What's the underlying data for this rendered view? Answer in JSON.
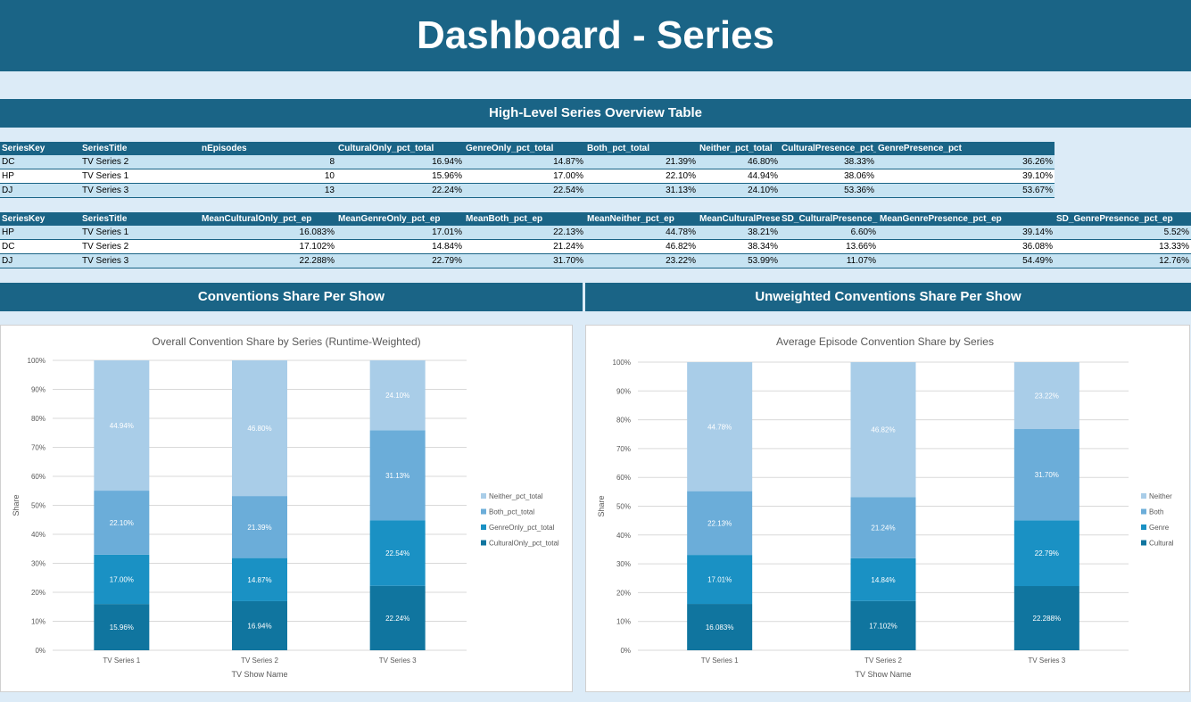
{
  "page_title": "Dashboard - Series",
  "overview_title": "High-Level Series Overview Table",
  "table1": {
    "headers": [
      "SeriesKey",
      "SeriesTitle",
      "nEpisodes",
      "CulturalOnly_pct_total",
      "GenreOnly_pct_total",
      "Both_pct_total",
      "Neither_pct_total",
      "CulturalPresence_pct_",
      "GenrePresence_pct_total",
      ""
    ],
    "rows": [
      [
        "DC",
        "TV Series 2",
        "8",
        "16.94%",
        "14.87%",
        "21.39%",
        "46.80%",
        "38.33%",
        "",
        "36.26%"
      ],
      [
        "HP",
        "TV Series 1",
        "10",
        "15.96%",
        "17.00%",
        "22.10%",
        "44.94%",
        "38.06%",
        "",
        "39.10%"
      ],
      [
        "DJ",
        "TV Series 3",
        "13",
        "22.24%",
        "22.54%",
        "31.13%",
        "24.10%",
        "53.36%",
        "",
        "53.67%"
      ]
    ]
  },
  "table2": {
    "headers": [
      "SeriesKey",
      "SeriesTitle",
      "MeanCulturalOnly_pct_ep",
      "MeanGenreOnly_pct_ep",
      "MeanBoth_pct_ep",
      "MeanNeither_pct_ep",
      "MeanCulturalPrese",
      "SD_CulturalPresence_",
      "MeanGenrePresence_pct_ep",
      "SD_GenrePresence_pct_ep"
    ],
    "rows": [
      [
        "HP",
        "TV Series 1",
        "16.083%",
        "17.01%",
        "22.13%",
        "44.78%",
        "38.21%",
        "6.60%",
        "39.14%",
        "5.52%"
      ],
      [
        "DC",
        "TV Series 2",
        "17.102%",
        "14.84%",
        "21.24%",
        "46.82%",
        "38.34%",
        "13.66%",
        "36.08%",
        "13.33%"
      ],
      [
        "DJ",
        "TV Series 3",
        "22.288%",
        "22.79%",
        "31.70%",
        "23.22%",
        "53.99%",
        "11.07%",
        "54.49%",
        "12.76%"
      ]
    ]
  },
  "section_left": "Conventions Share Per Show",
  "section_right": "Unweighted Conventions Share Per Show",
  "colors": {
    "header": "#1a6486",
    "cultural": "#10759f",
    "genre": "#1a91c4",
    "both": "#6badd9",
    "neither": "#a9cde8"
  },
  "chart_data": [
    {
      "type": "bar",
      "stacked": true,
      "title": "Overall Convention Share by Series (Runtime-Weighted)",
      "xlabel": "TV Show Name",
      "ylabel": "Share",
      "ylim": [
        0,
        100
      ],
      "yticks": [
        "0%",
        "10%",
        "20%",
        "30%",
        "40%",
        "50%",
        "60%",
        "70%",
        "80%",
        "90%",
        "100%"
      ],
      "categories": [
        "TV Series 1",
        "TV Series 2",
        "TV Series 3"
      ],
      "legend_position": "right",
      "series": [
        {
          "name": "CulturalOnly_pct_total",
          "values": [
            15.96,
            16.94,
            22.24
          ],
          "labels": [
            "15.96%",
            "16.94%",
            "22.24%"
          ]
        },
        {
          "name": "GenreOnly_pct_total",
          "values": [
            17.0,
            14.87,
            22.54
          ],
          "labels": [
            "17.00%",
            "14.87%",
            "22.54%"
          ]
        },
        {
          "name": "Both_pct_total",
          "values": [
            22.1,
            21.39,
            31.13
          ],
          "labels": [
            "22.10%",
            "21.39%",
            "31.13%"
          ]
        },
        {
          "name": "Neither_pct_total",
          "values": [
            44.94,
            46.8,
            24.1
          ],
          "labels": [
            "44.94%",
            "46.80%",
            "24.10%"
          ]
        }
      ]
    },
    {
      "type": "bar",
      "stacked": true,
      "title": "Average Episode Convention Share by Series",
      "xlabel": "TV Show Name",
      "ylabel": "Share",
      "ylim": [
        0,
        100
      ],
      "yticks": [
        "0%",
        "10%",
        "20%",
        "30%",
        "40%",
        "50%",
        "60%",
        "70%",
        "80%",
        "90%",
        "100%"
      ],
      "categories": [
        "TV Series 1",
        "TV Series 2",
        "TV Series 3"
      ],
      "legend_position": "right",
      "series": [
        {
          "name": "Cultural",
          "values": [
            16.083,
            17.102,
            22.288
          ],
          "labels": [
            "16.083%",
            "17.102%",
            "22.288%"
          ]
        },
        {
          "name": "Genre",
          "values": [
            17.01,
            14.84,
            22.79
          ],
          "labels": [
            "17.01%",
            "14.84%",
            "22.79%"
          ]
        },
        {
          "name": "Both",
          "values": [
            22.13,
            21.24,
            31.7
          ],
          "labels": [
            "22.13%",
            "21.24%",
            "31.70%"
          ]
        },
        {
          "name": "Neither",
          "values": [
            44.78,
            46.82,
            23.22
          ],
          "labels": [
            "44.78%",
            "46.82%",
            "23.22%"
          ]
        }
      ]
    }
  ]
}
